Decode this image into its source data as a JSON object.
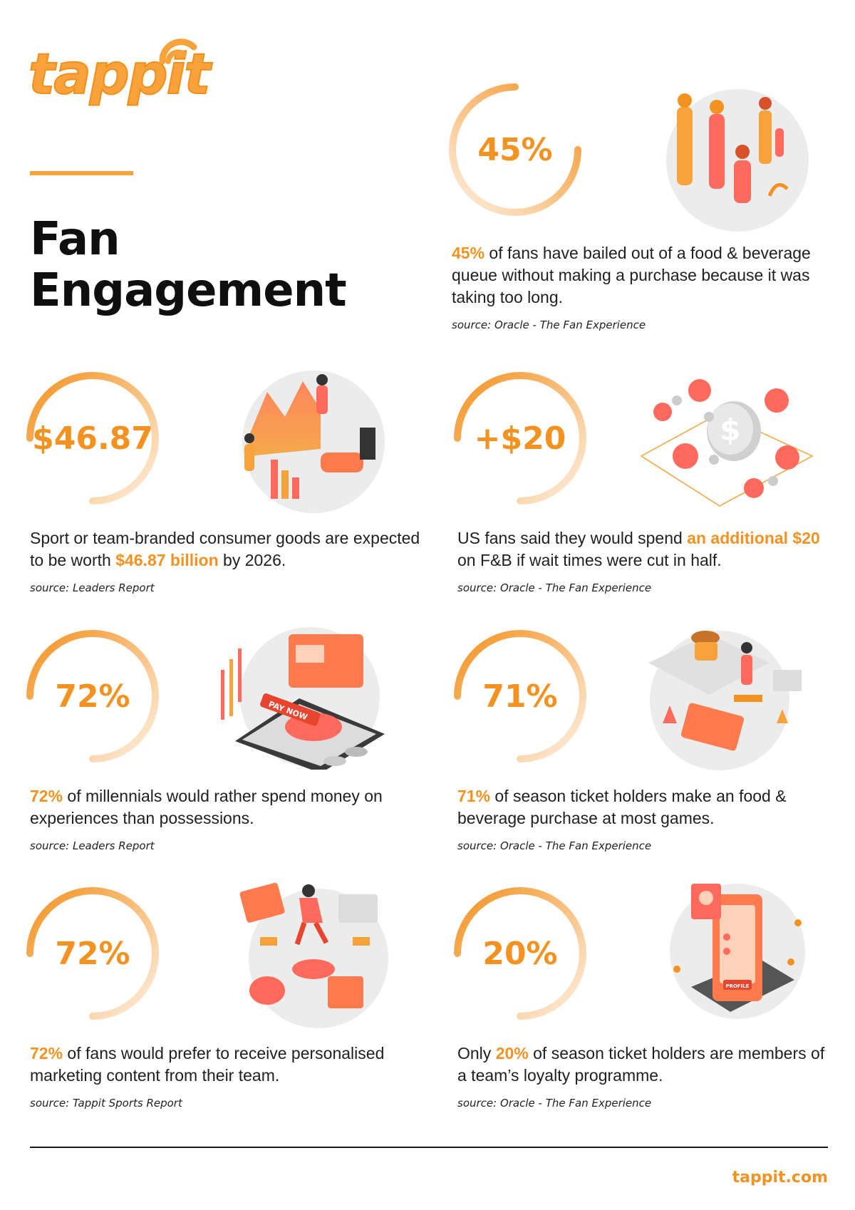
{
  "brand": {
    "logo_text": "tappit",
    "accent": "#f39221",
    "url": "tappit.com"
  },
  "page_title": {
    "line1": "Fan",
    "line2": "Engagement"
  },
  "stats": [
    {
      "ring_label": "45%",
      "pre": "",
      "highlight": "45%",
      "post": " of fans have bailed out of a food & beverage queue without making a purchase because it was taking too long.",
      "source": "source: Oracle - The Fan Experience",
      "illustration": "people-in-queue-illustration"
    },
    {
      "ring_label": "$46.87",
      "pre": "Sport or team-branded consumer goods are expected to be worth ",
      "highlight": "$46.87 billion",
      "post": " by 2026.",
      "source": "source: Leaders Report",
      "illustration": "market-growth-charts-illustration"
    },
    {
      "ring_label": "+$20",
      "pre": "US fans said they would spend ",
      "highlight": "an additional $20",
      "post": " on F&B if wait times were cut in half.",
      "source": "source: Oracle - The Fan Experience",
      "illustration": "coin-network-illustration"
    },
    {
      "ring_label": "72%",
      "pre": "",
      "highlight": "72%",
      "post": " of millennials would rather spend money on experiences than possessions.",
      "source": "source: Leaders Report",
      "illustration": "mobile-payment-illustration"
    },
    {
      "ring_label": "71%",
      "pre": "",
      "highlight": "71%",
      "post": " of season ticket holders make an food & beverage purchase at most games.",
      "source": "source: Oracle - The Fan Experience",
      "illustration": "food-order-app-illustration"
    },
    {
      "ring_label": "72%",
      "pre": "",
      "highlight": "72%",
      "post": " of fans would prefer to receive personalised marketing content from their team.",
      "source": "source: Tappit Sports Report",
      "illustration": "personalised-marketing-illustration"
    },
    {
      "ring_label": "20%",
      "pre": "Only ",
      "highlight": "20%",
      "post": " of season ticket holders are members of a team’s loyalty programme.",
      "source": "source: Oracle - The Fan Experience",
      "illustration": "loyalty-profile-phone-illustration"
    }
  ],
  "illustration_texts": {
    "pay_now": "PAY NOW",
    "profile": "PROFILE"
  }
}
